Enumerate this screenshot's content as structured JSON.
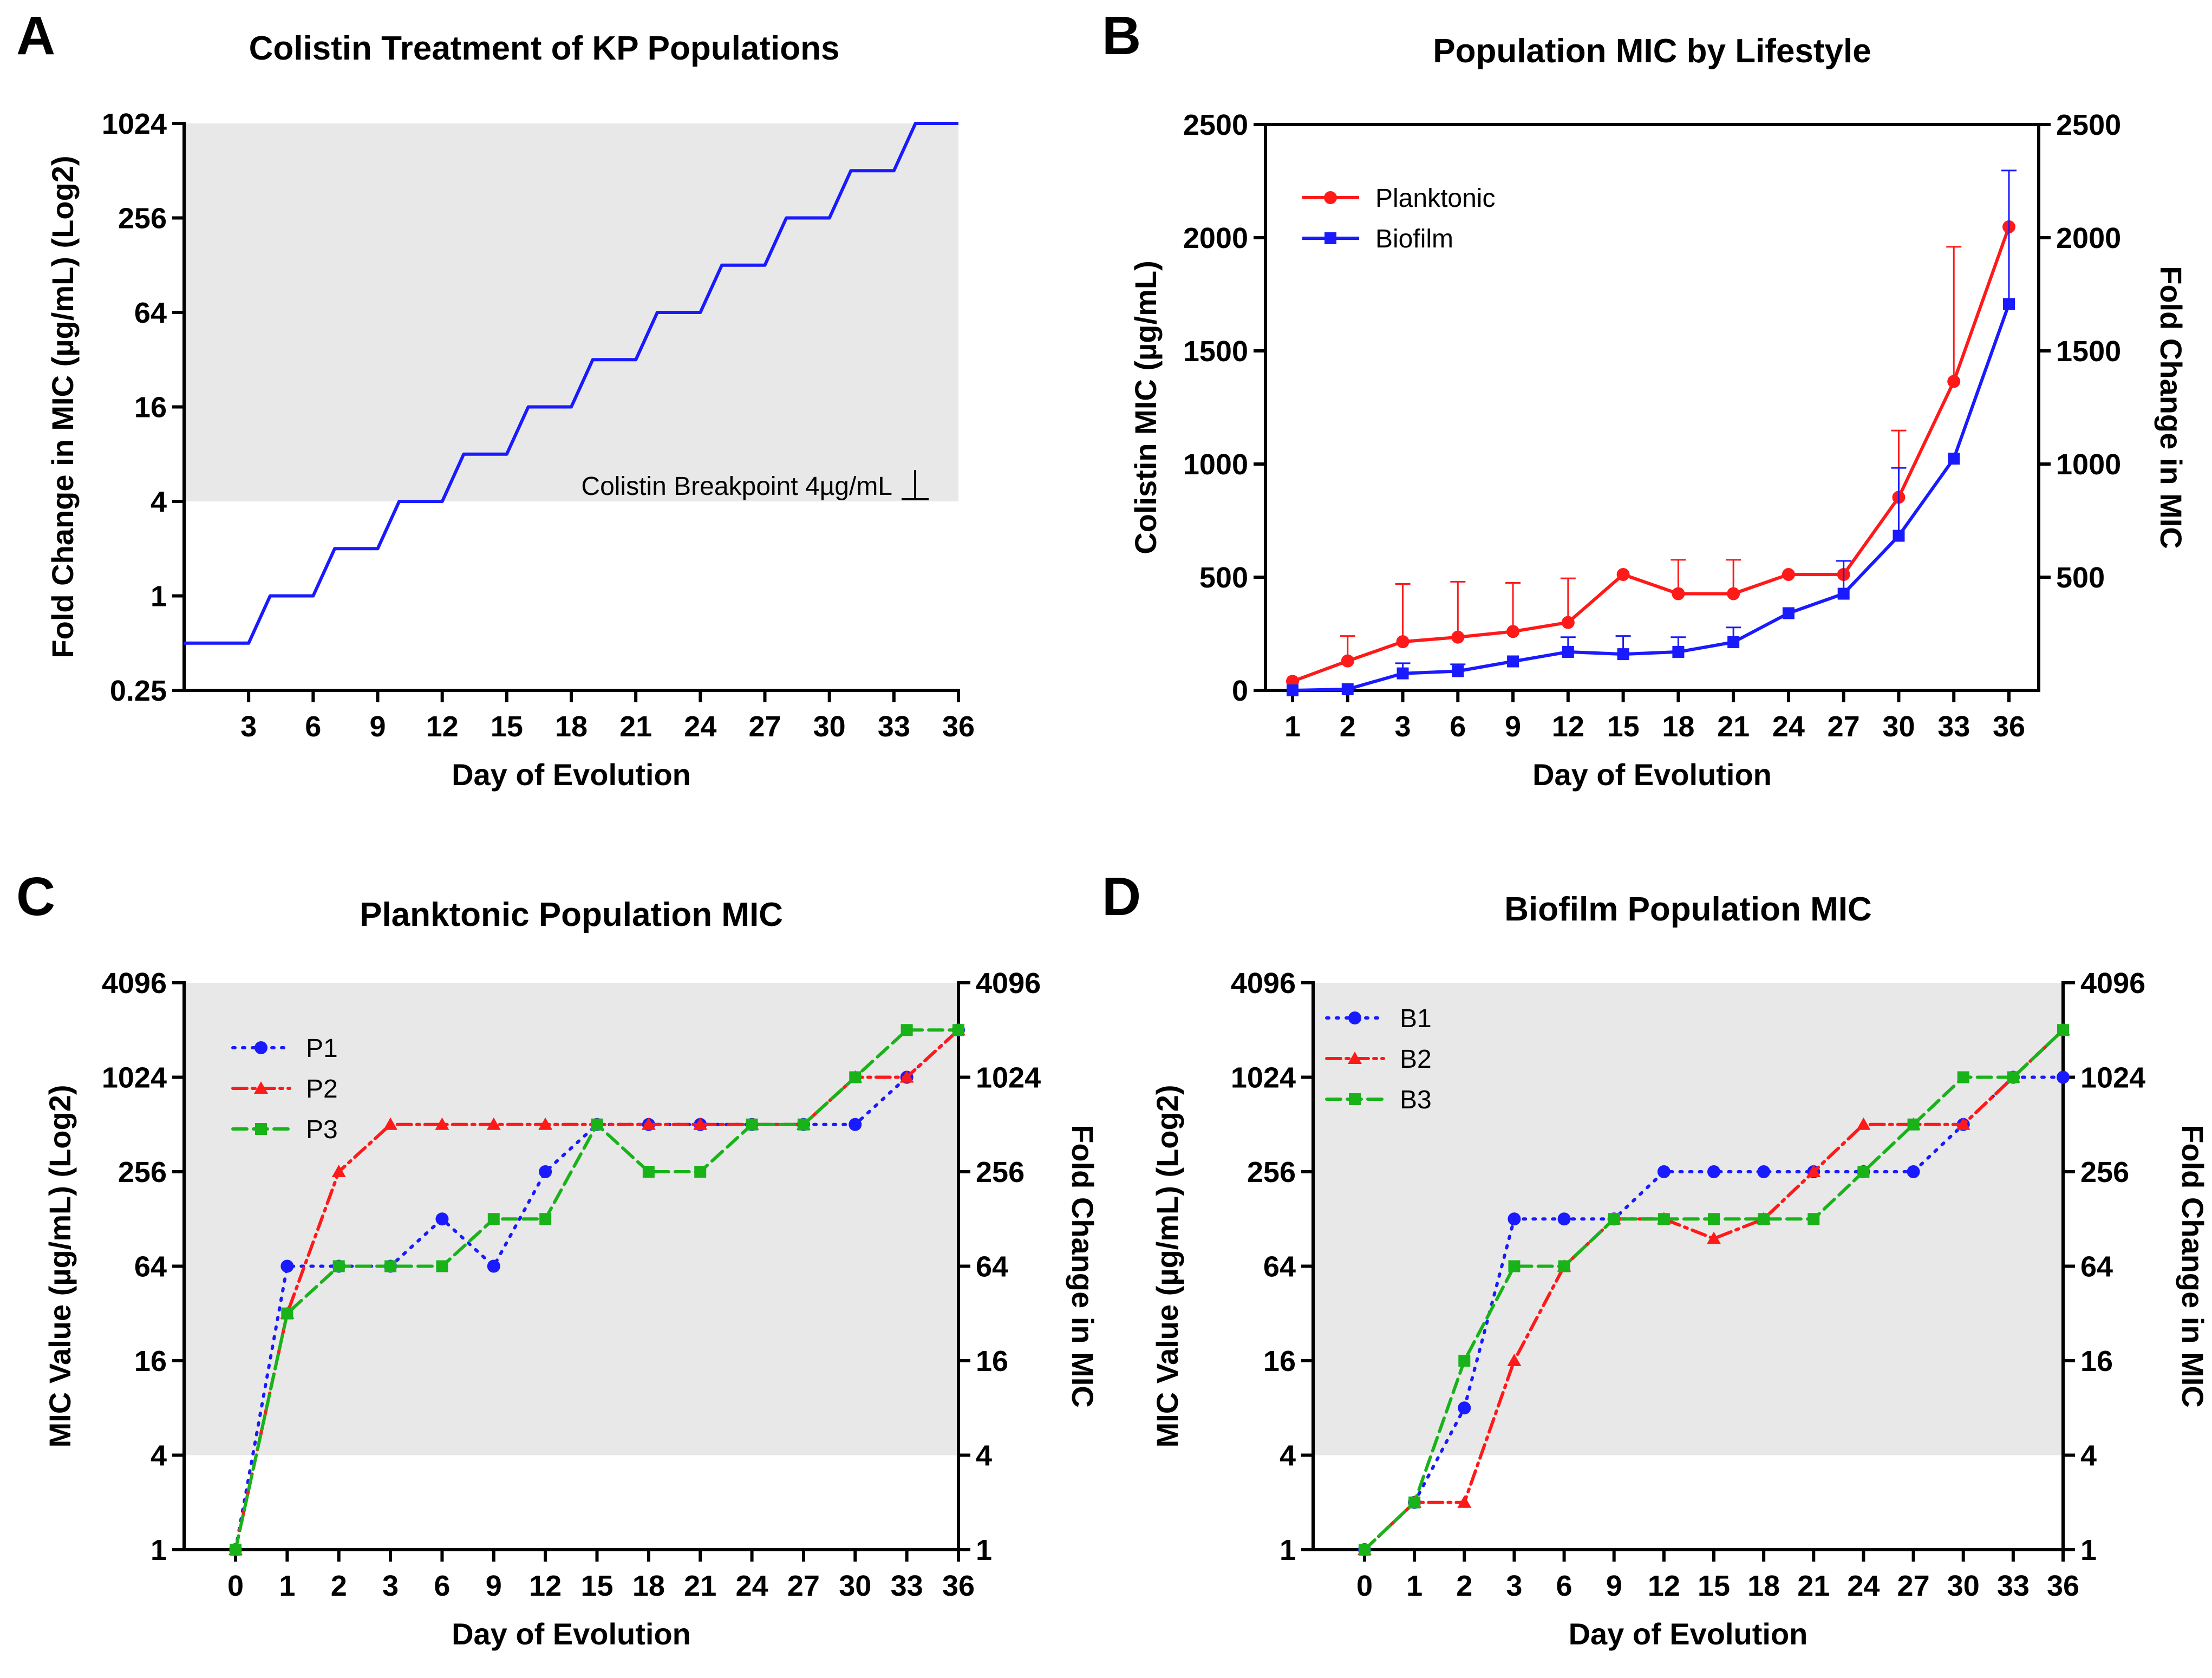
{
  "panels": [
    {
      "letter": "A"
    },
    {
      "letter": "B"
    },
    {
      "letter": "C"
    },
    {
      "letter": "D"
    }
  ],
  "chart_data": [
    {
      "panel": "A",
      "type": "line",
      "title": "Colistin Treatment of KP Populations",
      "xlabel": "Day of Evolution",
      "ylabel": "Fold  Change in MIC (µg/mL) (Log2)",
      "x_ticks": [
        "3",
        "6",
        "9",
        "12",
        "15",
        "18",
        "21",
        "24",
        "27",
        "30",
        "33",
        "36"
      ],
      "y_ticks": [
        "0.25",
        "1",
        "4",
        "16",
        "64",
        "256",
        "1024"
      ],
      "y_scale": "log2",
      "ylim": [
        0.25,
        1024
      ],
      "xlim": [
        0,
        36
      ],
      "shaded_region": {
        "y_from": 4,
        "y_to": 1024,
        "color": "#e8e8e8"
      },
      "annotation": "Colistin Breakpoint 4µg/mL",
      "series": [
        {
          "name": "Fold change",
          "color": "#1a1aff",
          "style": "step",
          "x": [
            0,
            3,
            4,
            6,
            7,
            9,
            10,
            12,
            13,
            15,
            16,
            18,
            19,
            21,
            22,
            24,
            25,
            27,
            28,
            30,
            31,
            33,
            34,
            36
          ],
          "values": [
            0.5,
            0.5,
            1,
            1,
            2,
            2,
            4,
            4,
            8,
            8,
            16,
            16,
            32,
            32,
            64,
            64,
            128,
            128,
            256,
            256,
            512,
            512,
            1024,
            1024
          ]
        }
      ]
    },
    {
      "panel": "B",
      "type": "line",
      "title": "Population MIC by Lifestyle",
      "xlabel": "Day of Evolution",
      "ylabel": "Colistin MIC (µg/mL)",
      "ylabel_right": "Fold Change in  MIC",
      "categories": [
        "1",
        "2",
        "3",
        "6",
        "9",
        "12",
        "15",
        "18",
        "21",
        "24",
        "27",
        "30",
        "33",
        "36"
      ],
      "y_ticks": [
        "0",
        "500",
        "1000",
        "1500",
        "2000",
        "2500"
      ],
      "y_ticks_right": [
        "500",
        "1000",
        "1500",
        "2000",
        "2500"
      ],
      "ylim": [
        0,
        2500
      ],
      "legend": "top-left",
      "series": [
        {
          "name": "Planktonic",
          "color": "#ff1a1a",
          "marker": "circle",
          "values": [
            40,
            130,
            215,
            235,
            260,
            300,
            512,
            427,
            427,
            512,
            512,
            853,
            1365,
            2048
          ],
          "err_up": [
            0,
            110,
            255,
            245,
            215,
            195,
            0,
            150,
            150,
            0,
            0,
            295,
            595,
            0
          ]
        },
        {
          "name": "Biofilm",
          "color": "#1a1aff",
          "marker": "square",
          "values": [
            0,
            5,
            75,
            85,
            128,
            170,
            160,
            170,
            213,
            341,
            427,
            683,
            1024,
            1707
          ],
          "err_up": [
            0,
            0,
            45,
            30,
            0,
            65,
            80,
            65,
            65,
            0,
            145,
            300,
            0,
            590
          ]
        }
      ]
    },
    {
      "panel": "C",
      "type": "line",
      "title": "Planktonic Population MIC",
      "xlabel": "Day of Evolution",
      "ylabel": "MIC Value (µg/mL) (Log2)",
      "ylabel_right": "Fold Change in MIC",
      "categories": [
        "0",
        "1",
        "2",
        "3",
        "6",
        "9",
        "12",
        "15",
        "18",
        "21",
        "24",
        "27",
        "30",
        "33",
        "36"
      ],
      "y_ticks": [
        "1",
        "4",
        "16",
        "64",
        "256",
        "1024",
        "4096"
      ],
      "y_ticks_right": [
        "1",
        "4",
        "16",
        "64",
        "256",
        "1024",
        "4096"
      ],
      "y_scale": "log2",
      "ylim": [
        1,
        4096
      ],
      "shaded_region": {
        "y_from": 4,
        "y_to": 4096,
        "color": "#e8e8e8"
      },
      "legend": "top-left",
      "series": [
        {
          "name": "P1",
          "color": "#1a1aff",
          "marker": "circle",
          "dash": "4 14",
          "values": [
            1,
            64,
            64,
            64,
            128,
            64,
            256,
            512,
            512,
            512,
            512,
            512,
            512,
            1024,
            2048
          ]
        },
        {
          "name": "P2",
          "color": "#ff1a1a",
          "marker": "triangle",
          "dash": "26 10 5 10",
          "values": [
            1,
            32,
            256,
            512,
            512,
            512,
            512,
            512,
            512,
            512,
            512,
            512,
            1024,
            1024,
            2048
          ]
        },
        {
          "name": "P3",
          "color": "#19b319",
          "marker": "square",
          "dash": "26 12",
          "values": [
            1,
            32,
            64,
            64,
            64,
            128,
            128,
            512,
            256,
            256,
            512,
            512,
            1024,
            2048,
            2048
          ]
        }
      ]
    },
    {
      "panel": "D",
      "type": "line",
      "title": "Biofilm Population MIC",
      "xlabel": "Day of Evolution",
      "ylabel": "MIC Value (µg/mL) (Log2)",
      "ylabel_right": "Fold Change in MIC",
      "categories": [
        "0",
        "1",
        "2",
        "3",
        "6",
        "9",
        "12",
        "15",
        "18",
        "21",
        "24",
        "27",
        "30",
        "33",
        "36"
      ],
      "y_ticks": [
        "1",
        "4",
        "16",
        "64",
        "256",
        "1024",
        "4096"
      ],
      "y_ticks_right": [
        "1",
        "4",
        "16",
        "64",
        "256",
        "1024",
        "4096"
      ],
      "y_scale": "log2",
      "ylim": [
        1,
        4096
      ],
      "shaded_region": {
        "y_from": 4,
        "y_to": 4096,
        "color": "#e8e8e8"
      },
      "legend": "top-left",
      "series": [
        {
          "name": "B1",
          "color": "#1a1aff",
          "marker": "circle",
          "dash": "4 14",
          "values": [
            1,
            2,
            8,
            128,
            128,
            128,
            256,
            256,
            256,
            256,
            256,
            256,
            512,
            1024,
            1024
          ]
        },
        {
          "name": "B2",
          "color": "#ff1a1a",
          "marker": "triangle",
          "dash": "26 10 5 10",
          "values": [
            1,
            2,
            2,
            16,
            64,
            128,
            128,
            96,
            128,
            256,
            512,
            512,
            512,
            1024,
            2048
          ]
        },
        {
          "name": "B3",
          "color": "#19b319",
          "marker": "square",
          "dash": "26 12",
          "values": [
            1,
            2,
            16,
            64,
            64,
            128,
            128,
            128,
            128,
            128,
            256,
            512,
            1024,
            1024,
            2048
          ]
        }
      ]
    }
  ]
}
